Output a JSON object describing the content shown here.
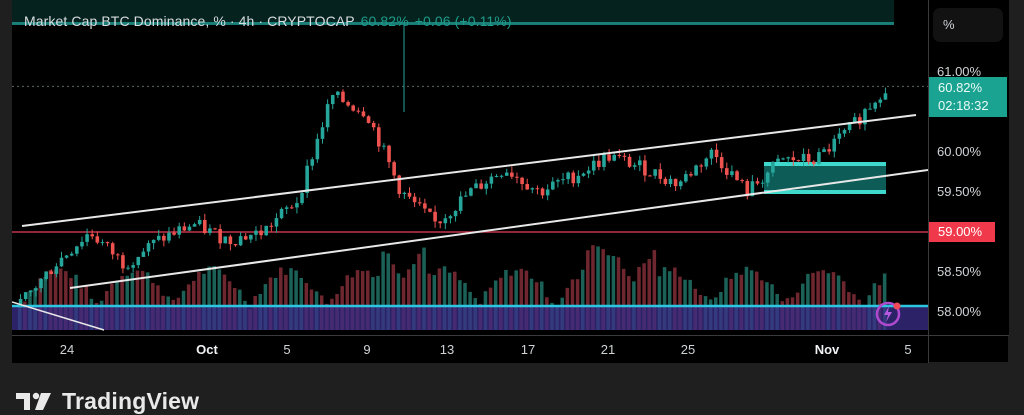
{
  "header": {
    "symbol_title": "Market Cap BTC Dominance, % · 4h · CRYPTOCAP",
    "last_value": "60.82%",
    "change": "+0.06 (+0.11%)"
  },
  "price_axis": {
    "unit_button": "%",
    "ticks": [
      "61.00%",
      "60.50%",
      "60.00%",
      "59.50%",
      "59.00%",
      "58.50%",
      "58.00%"
    ],
    "last_price_tag": {
      "value": "60.82%",
      "countdown": "02:18:32",
      "color": "#1aa390"
    },
    "horizontal_line_tag": {
      "value": "59.00%",
      "color": "#f03a4c"
    }
  },
  "time_axis": {
    "labels": [
      "24",
      "Oct",
      "5",
      "9",
      "13",
      "17",
      "21",
      "25",
      "Nov",
      "5"
    ]
  },
  "branding": {
    "name": "TradingView"
  },
  "colors": {
    "up": "#26a69a",
    "down": "#ef5350",
    "channel_lines": "#e8e8e8",
    "support_line": "#c0364a",
    "zone_fill": "#1aa8a0",
    "volume_ma": "#2c6fb0"
  },
  "chart_data": {
    "type": "candlestick",
    "title": "Market Cap BTC Dominance, % · 4h · CRYPTOCAP",
    "xlabel": "",
    "ylabel": "%",
    "ylim": [
      57.9,
      61.1
    ],
    "x_ticks": [
      "24",
      "Oct",
      "5",
      "9",
      "13",
      "17",
      "21",
      "25",
      "Nov",
      "5"
    ],
    "y_ticks": [
      58.0,
      58.5,
      59.0,
      59.5,
      60.0,
      60.5,
      61.0
    ],
    "last_value": 60.82,
    "change": 0.06,
    "change_pct": 0.11,
    "key_levels": {
      "horizontal_support": 59.0,
      "last_price_line": 60.82
    },
    "approx_closes_by_date": [
      {
        "date": "Sep 22",
        "value": 58.1
      },
      {
        "date": "Sep 24",
        "value": 58.6
      },
      {
        "date": "Sep 26",
        "value": 59.0
      },
      {
        "date": "Sep 28",
        "value": 58.6
      },
      {
        "date": "Oct 1",
        "value": 58.9
      },
      {
        "date": "Oct 3",
        "value": 59.1
      },
      {
        "date": "Oct 5",
        "value": 58.9
      },
      {
        "date": "Oct 7",
        "value": 59.0
      },
      {
        "date": "Oct 9",
        "value": 59.4
      },
      {
        "date": "Oct 10",
        "value": 60.7
      },
      {
        "date": "Oct 11",
        "value": 60.5
      },
      {
        "date": "Oct 12",
        "value": 59.5
      },
      {
        "date": "Oct 13",
        "value": 59.1
      },
      {
        "date": "Oct 15",
        "value": 59.5
      },
      {
        "date": "Oct 17",
        "value": 59.8
      },
      {
        "date": "Oct 19",
        "value": 59.5
      },
      {
        "date": "Oct 21",
        "value": 59.7
      },
      {
        "date": "Oct 23",
        "value": 59.95
      },
      {
        "date": "Oct 25",
        "value": 59.8
      },
      {
        "date": "Oct 27",
        "value": 59.6
      },
      {
        "date": "Oct 29",
        "value": 60.0
      },
      {
        "date": "Oct 30",
        "value": 59.5
      },
      {
        "date": "Nov 1",
        "value": 59.9
      },
      {
        "date": "Nov 2",
        "value": 59.9
      },
      {
        "date": "Nov 3",
        "value": 60.3
      },
      {
        "date": "Nov 4",
        "value": 60.82
      }
    ],
    "annotations": [
      "Ascending parallel channel (two white trendlines)",
      "Horizontal support line at 59.00%",
      "Teal consolidation box approx 59.5%–59.85% (Oct 29–Nov 3)",
      "Volume histogram with blue moving-average band at bottom"
    ],
    "grid": false,
    "legend_position": "top-left"
  }
}
